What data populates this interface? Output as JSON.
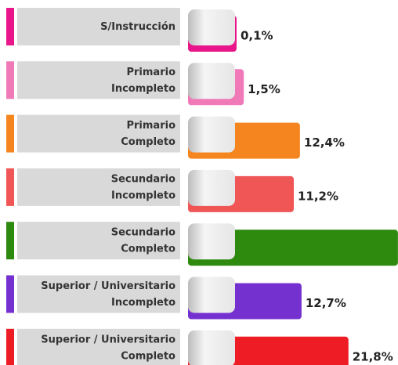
{
  "chart_data": {
    "type": "bar",
    "categories": [
      [
        "S/Instrucción"
      ],
      [
        "Primario",
        "Incompleto"
      ],
      [
        "Primario",
        "Completo"
      ],
      [
        "Secundario",
        "Incompleto"
      ],
      [
        "Secundario",
        "Completo"
      ],
      [
        "Superior / Universitario",
        "Incompleto"
      ],
      [
        "Superior / Universitario",
        "Completo"
      ]
    ],
    "values": [
      0.1,
      1.5,
      12.4,
      11.2,
      31.4,
      12.7,
      21.8
    ],
    "value_labels": [
      "0,1%",
      "1,5%",
      "12,4%",
      "11,2%",
      null,
      "12,7%",
      "21,8%"
    ],
    "colors": [
      "#e8168a",
      "#f07ab8",
      "#f5861f",
      "#f05656",
      "#2e8a0e",
      "#7530d0",
      "#ee1c25"
    ]
  }
}
